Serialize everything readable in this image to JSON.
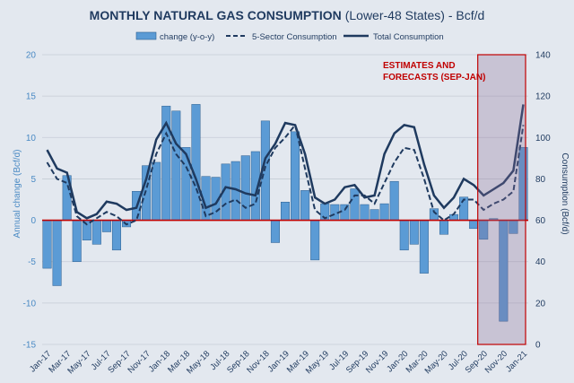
{
  "chart_data": {
    "type": "bar+line",
    "title": "MONTHLY NATURAL GAS CONSUMPTION",
    "title_suffix": "(Lower-48 States) - Bcf/d",
    "y_left_label": "Annual change (Bcf/d)",
    "y_right_label": "Consumption (Bcf/d)",
    "y_left_lim": [
      -15,
      20
    ],
    "y_left_ticks": [
      -15,
      -10,
      -5,
      0,
      5,
      10,
      15,
      20
    ],
    "y_right_lim": [
      0,
      140
    ],
    "y_right_ticks": [
      0,
      20,
      40,
      60,
      80,
      100,
      120,
      140
    ],
    "x_labels": [
      "Jan-17",
      "Mar-17",
      "May-17",
      "Jul-17",
      "Sep-17",
      "Nov-17",
      "Jan-18",
      "Mar-18",
      "May-18",
      "Jul-18",
      "Sep-18",
      "Nov-18",
      "Jan-19",
      "Mar-19",
      "May-19",
      "Jul-19",
      "Sep-19",
      "Nov-19",
      "Jan-20",
      "Mar-20",
      "May-20",
      "Jul-20",
      "Sep-20",
      "Nov-20",
      "Jan-21"
    ],
    "months": [
      "Jan-17",
      "Feb-17",
      "Mar-17",
      "Apr-17",
      "May-17",
      "Jun-17",
      "Jul-17",
      "Aug-17",
      "Sep-17",
      "Oct-17",
      "Nov-17",
      "Dec-17",
      "Jan-18",
      "Feb-18",
      "Mar-18",
      "Apr-18",
      "May-18",
      "Jun-18",
      "Jul-18",
      "Aug-18",
      "Sep-18",
      "Oct-18",
      "Nov-18",
      "Dec-18",
      "Jan-19",
      "Feb-19",
      "Mar-19",
      "Apr-19",
      "May-19",
      "Jun-19",
      "Jul-19",
      "Aug-19",
      "Sep-19",
      "Oct-19",
      "Nov-19",
      "Dec-19",
      "Jan-20",
      "Feb-20",
      "Mar-20",
      "Apr-20",
      "May-20",
      "Jun-20",
      "Jul-20",
      "Aug-20",
      "Sep-20",
      "Oct-20",
      "Nov-20",
      "Dec-20",
      "Jan-21"
    ],
    "series": [
      {
        "name": "change (y-o-y)",
        "type": "bar",
        "axis": "left",
        "color": "#5b9bd5",
        "values": [
          -5.8,
          -7.9,
          5.4,
          -5.0,
          -2.4,
          -2.9,
          -1.4,
          -3.6,
          -0.8,
          3.5,
          6.6,
          7.0,
          13.8,
          13.2,
          8.8,
          14.0,
          5.3,
          5.2,
          6.8,
          7.1,
          7.8,
          8.3,
          12.0,
          -2.7,
          2.2,
          10.7,
          3.6,
          -4.8,
          2.0,
          1.9,
          1.9,
          3.8,
          1.9,
          1.3,
          2.0,
          4.7,
          -3.6,
          -2.9,
          -6.4,
          1.4,
          -1.7,
          0.7,
          2.8,
          -1.0,
          -2.3,
          0.2,
          -12.2,
          -1.6,
          8.8
        ]
      },
      {
        "name": "5-Sector Consumption",
        "type": "line",
        "style": "dashed",
        "axis": "right",
        "color": "#1f3a5f",
        "values": [
          88,
          80,
          78,
          62,
          58,
          61,
          64,
          62,
          58,
          60,
          75,
          92,
          102,
          92,
          86,
          76,
          62,
          64,
          68,
          70,
          66,
          68,
          86,
          95,
          100,
          106,
          85,
          65,
          61,
          63,
          65,
          72,
          72,
          68,
          78,
          88,
          95,
          94,
          80,
          64,
          60,
          63,
          70,
          70,
          65,
          68,
          70,
          74,
          106
        ]
      },
      {
        "name": "Total Consumption",
        "type": "line",
        "style": "solid",
        "axis": "right",
        "color": "#1f3a5f",
        "values": [
          94,
          85,
          83,
          64,
          61,
          63,
          69,
          68,
          65,
          66,
          80,
          99,
          107,
          97,
          92,
          80,
          66,
          68,
          76,
          75,
          73,
          72,
          90,
          97,
          107,
          106,
          92,
          71,
          68,
          70,
          76,
          77,
          71,
          72,
          92,
          102,
          106,
          105,
          87,
          72,
          66,
          71,
          80,
          77,
          72,
          75,
          78,
          84,
          116
        ]
      }
    ],
    "forecast_box": {
      "label_line1": "ESTIMATES AND",
      "label_line2": "FORECASTS (SEP-JAN)",
      "start": "Sep-20",
      "end": "Jan-21",
      "color": "#c00000"
    },
    "zero_line_color": "#c00000",
    "grid": "horizontal",
    "legend_position": "top"
  }
}
